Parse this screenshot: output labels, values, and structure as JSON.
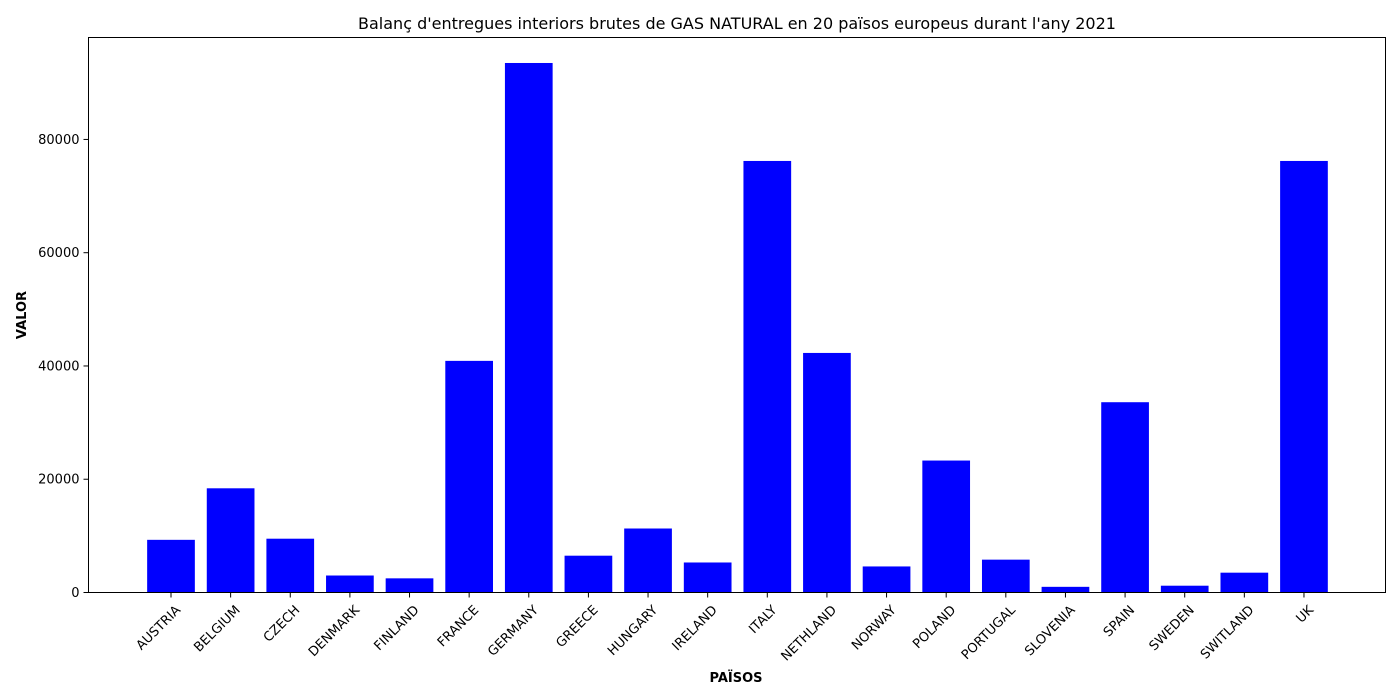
{
  "chart_data": {
    "type": "bar",
    "title": "Balanç d'entregues interiors brutes de GAS NATURAL en 20 països europeus durant l'any 2021",
    "xlabel": "PAÏSOS",
    "ylabel": "VALOR",
    "categories": [
      "AUSTRIA",
      "BELGIUM",
      "CZECH",
      "DENMARK",
      "FINLAND",
      "FRANCE",
      "GERMANY",
      "GREECE",
      "HUNGARY",
      "IRELAND",
      "ITALY",
      "NETHLAND",
      "NORWAY",
      "POLAND",
      "PORTUGAL",
      "SLOVENIA",
      "SPAIN",
      "SWEDEN",
      "SWITLAND",
      "UK"
    ],
    "values": [
      9300,
      18400,
      9500,
      3000,
      2500,
      40900,
      93500,
      6500,
      11300,
      5300,
      76200,
      42300,
      4600,
      23300,
      5800,
      1000,
      33600,
      1200,
      3500,
      76200
    ],
    "yticks": [
      0,
      20000,
      40000,
      60000,
      80000
    ],
    "ylim": [
      0,
      98000
    ],
    "bar_color": "#0000ff",
    "grid": false,
    "legend": "none"
  }
}
